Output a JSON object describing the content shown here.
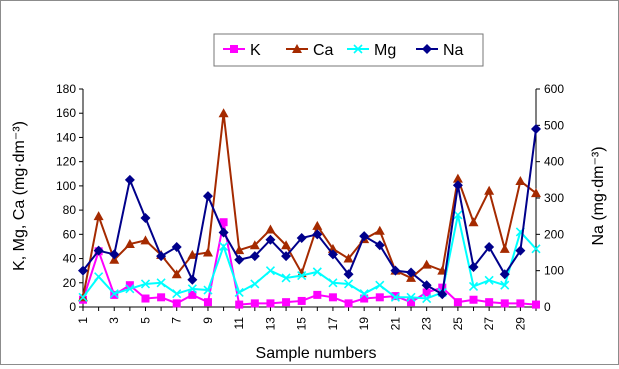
{
  "chart_data": {
    "type": "line",
    "xlabel": "Sample numbers",
    "ylabel_left": "K, Mg, Ca (mg·dm⁻³)",
    "ylabel_right": "Na (mg·dm⁻³)",
    "x_ticks": [
      1,
      3,
      5,
      7,
      9,
      11,
      13,
      15,
      17,
      19,
      21,
      23,
      25,
      27,
      29
    ],
    "x_range": [
      1,
      30
    ],
    "ylim_left": [
      0,
      180
    ],
    "yticks_left": [
      0,
      20,
      40,
      60,
      80,
      100,
      120,
      140,
      160,
      180
    ],
    "ylim_right": [
      0,
      600
    ],
    "yticks_right": [
      0,
      100,
      200,
      300,
      400,
      500,
      600
    ],
    "grid": false,
    "legend_position": "top",
    "x": [
      1,
      2,
      3,
      4,
      5,
      6,
      7,
      8,
      9,
      10,
      11,
      12,
      13,
      14,
      15,
      16,
      17,
      18,
      19,
      20,
      21,
      22,
      23,
      24,
      25,
      26,
      27,
      28,
      29,
      30
    ],
    "series": [
      {
        "name": "K",
        "axis": "left",
        "color": "#ff00ff",
        "marker": "square",
        "values": [
          6,
          46,
          10,
          18,
          7,
          8,
          3,
          10,
          4,
          70,
          2,
          3,
          3,
          4,
          5,
          10,
          8,
          3,
          7,
          8,
          9,
          4,
          12,
          16,
          4,
          6,
          4,
          3,
          3,
          2
        ]
      },
      {
        "name": "Ca",
        "axis": "left",
        "color": "#a52a00",
        "marker": "triangle",
        "values": [
          8,
          75,
          39,
          52,
          55,
          43,
          27,
          43,
          45,
          160,
          47,
          51,
          64,
          51,
          28,
          67,
          48,
          40,
          56,
          63,
          30,
          24,
          35,
          30,
          106,
          70,
          96,
          48,
          104,
          94
        ]
      },
      {
        "name": "Mg",
        "axis": "left",
        "color": "#00ffff",
        "marker": "x",
        "values": [
          8,
          25,
          11,
          15,
          19,
          20,
          11,
          15,
          14,
          50,
          12,
          19,
          30,
          24,
          26,
          29,
          20,
          19,
          11,
          18,
          8,
          8,
          7,
          12,
          76,
          17,
          22,
          18,
          62,
          48
        ]
      },
      {
        "name": "Na",
        "axis": "right",
        "color": "#00008b",
        "marker": "diamond",
        "values": [
          100,
          155,
          145,
          350,
          245,
          140,
          165,
          75,
          305,
          205,
          130,
          140,
          185,
          140,
          190,
          200,
          145,
          90,
          195,
          170,
          100,
          95,
          60,
          35,
          335,
          110,
          165,
          90,
          155,
          490
        ]
      }
    ]
  }
}
